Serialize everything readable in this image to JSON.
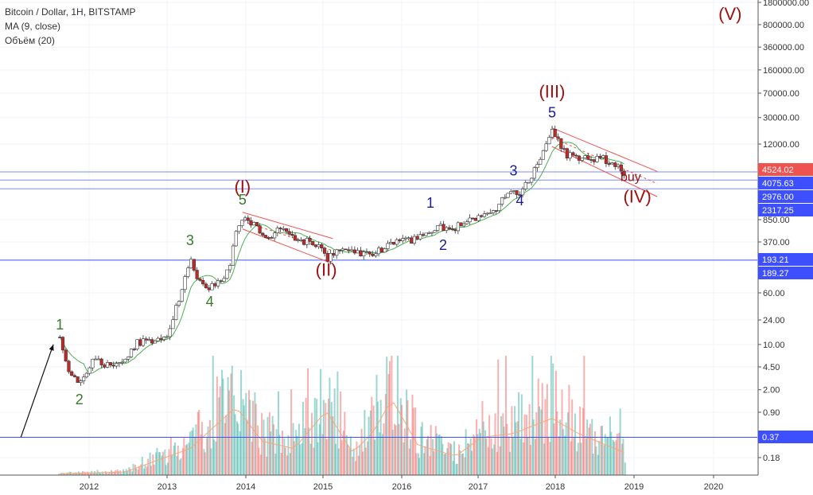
{
  "legend": {
    "title": "Bitcoin / Dollar, 1H, BITSTAMP",
    "ma": "MA (9, close)",
    "volume": "Объём (20)"
  },
  "chart_data": {
    "type": "candlestick",
    "y_scale": "log",
    "y_ticks": [
      "1800000.00",
      "800000.00",
      "360000.00",
      "160000.00",
      "70000.00",
      "30000.00",
      "12000.00",
      "850.00",
      "370.00",
      "60.00",
      "24.00",
      "10.00",
      "4.50",
      "2.00",
      "0.90",
      "0.18"
    ],
    "x_ticks": [
      "2012",
      "2013",
      "2014",
      "2015",
      "2016",
      "2017",
      "2018",
      "2019",
      "2020"
    ],
    "price_tags": [
      {
        "label": "4524.02",
        "color": "#ef5350"
      },
      {
        "label": "4075.63",
        "color": "#3d4fff"
      },
      {
        "label": "2976.00",
        "color": "#3d4fff"
      },
      {
        "label": "2317.25",
        "color": "#3d4fff"
      },
      {
        "label": "193.21",
        "color": "#3d4fff"
      },
      {
        "label": "189.27",
        "color": "#3d4fff"
      },
      {
        "label": "0.37",
        "color": "#3d4fff"
      }
    ],
    "price_path": [
      {
        "date": "2011-08",
        "price": 13
      },
      {
        "date": "2011-09",
        "price": 5
      },
      {
        "date": "2011-10",
        "price": 3
      },
      {
        "date": "2011-11",
        "price": 2.5
      },
      {
        "date": "2012-01",
        "price": 6
      },
      {
        "date": "2012-03",
        "price": 4.9
      },
      {
        "date": "2012-06",
        "price": 5.5
      },
      {
        "date": "2012-08",
        "price": 11
      },
      {
        "date": "2012-11",
        "price": 11
      },
      {
        "date": "2013-01",
        "price": 17
      },
      {
        "date": "2013-03",
        "price": 90
      },
      {
        "date": "2013-04",
        "price": 200
      },
      {
        "date": "2013-05",
        "price": 115
      },
      {
        "date": "2013-07",
        "price": 70
      },
      {
        "date": "2013-10",
        "price": 130
      },
      {
        "date": "2013-11",
        "price": 600
      },
      {
        "date": "2013-12",
        "price": 850
      },
      {
        "date": "2014-02",
        "price": 650
      },
      {
        "date": "2014-04",
        "price": 450
      },
      {
        "date": "2014-06",
        "price": 600
      },
      {
        "date": "2014-09",
        "price": 400
      },
      {
        "date": "2014-12",
        "price": 320
      },
      {
        "date": "2015-01",
        "price": 200
      },
      {
        "date": "2015-03",
        "price": 260
      },
      {
        "date": "2015-08",
        "price": 230
      },
      {
        "date": "2015-11",
        "price": 380
      },
      {
        "date": "2016-02",
        "price": 400
      },
      {
        "date": "2016-06",
        "price": 650
      },
      {
        "date": "2016-08",
        "price": 580
      },
      {
        "date": "2016-12",
        "price": 900
      },
      {
        "date": "2017-03",
        "price": 1150
      },
      {
        "date": "2017-06",
        "price": 2700
      },
      {
        "date": "2017-07",
        "price": 2000
      },
      {
        "date": "2017-09",
        "price": 4300
      },
      {
        "date": "2017-12",
        "price": 19000
      },
      {
        "date": "2018-02",
        "price": 8500
      },
      {
        "date": "2018-04",
        "price": 7000
      },
      {
        "date": "2018-07",
        "price": 7400
      },
      {
        "date": "2018-09",
        "price": 6400
      },
      {
        "date": "2018-11",
        "price": 4524
      }
    ],
    "volume_path": [
      {
        "date": "2011-08",
        "v": 0.02
      },
      {
        "date": "2012-06",
        "v": 0.04
      },
      {
        "date": "2013-04",
        "v": 0.35
      },
      {
        "date": "2013-11",
        "v": 0.9
      },
      {
        "date": "2014-03",
        "v": 0.45
      },
      {
        "date": "2014-08",
        "v": 0.35
      },
      {
        "date": "2015-01",
        "v": 0.85
      },
      {
        "date": "2015-05",
        "v": 0.3
      },
      {
        "date": "2015-08",
        "v": 0.55
      },
      {
        "date": "2015-11",
        "v": 1.0
      },
      {
        "date": "2016-03",
        "v": 0.4
      },
      {
        "date": "2016-09",
        "v": 0.25
      },
      {
        "date": "2017-01",
        "v": 0.5
      },
      {
        "date": "2017-06",
        "v": 0.55
      },
      {
        "date": "2017-12",
        "v": 0.75
      },
      {
        "date": "2018-04",
        "v": 0.55
      },
      {
        "date": "2018-11",
        "v": 0.3
      }
    ],
    "wave_labels": [
      {
        "text": "1",
        "date": "2011-08",
        "price": 17,
        "color": "#3a7a2a",
        "size": 18
      },
      {
        "text": "2",
        "date": "2011-11",
        "price": 1.2,
        "color": "#3a7a2a",
        "size": 18
      },
      {
        "text": "3",
        "date": "2013-04",
        "price": 330,
        "color": "#3a7a2a",
        "size": 18
      },
      {
        "text": "4",
        "date": "2013-07",
        "price": 38,
        "color": "#3a7a2a",
        "size": 18
      },
      {
        "text": "5",
        "date": "2013-12",
        "price": 1450,
        "color": "#3a7a2a",
        "size": 18
      },
      {
        "text": "(I)",
        "date": "2013-12",
        "price": 2200,
        "color": "#a01010",
        "size": 22
      },
      {
        "text": "(II)",
        "date": "2015-01",
        "price": 110,
        "color": "#a01010",
        "size": 22
      },
      {
        "text": "1",
        "date": "2016-05",
        "price": 1300,
        "color": "#1a1a9a",
        "size": 18
      },
      {
        "text": "2",
        "date": "2016-07",
        "price": 280,
        "color": "#1a1a9a",
        "size": 18
      },
      {
        "text": "3",
        "date": "2017-06",
        "price": 4000,
        "color": "#1a1a9a",
        "size": 18
      },
      {
        "text": "4",
        "date": "2017-07",
        "price": 1400,
        "color": "#1a1a9a",
        "size": 18
      },
      {
        "text": "5",
        "date": "2017-12",
        "price": 30000,
        "color": "#1a1a9a",
        "size": 18
      },
      {
        "text": "(III)",
        "date": "2017-12",
        "price": 60000,
        "color": "#a01010",
        "size": 22
      },
      {
        "text": "buy",
        "date": "2018-12",
        "price": 3300,
        "color": "#a01010",
        "size": 16
      },
      {
        "text": "(IV)",
        "date": "2019-01",
        "price": 1550,
        "color": "#a01010",
        "size": 22
      },
      {
        "text": "(V)",
        "date": "2020-03",
        "price": 950000,
        "color": "#a01010",
        "size": 22
      }
    ]
  }
}
